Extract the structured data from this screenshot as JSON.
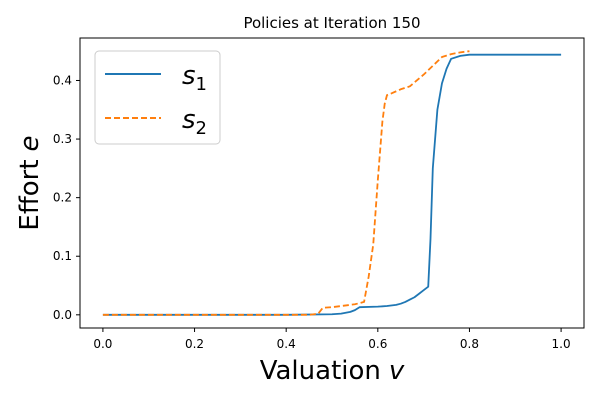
{
  "chart_data": {
    "type": "line",
    "title": "Policies at Iteration 150",
    "xlabel": "Valuation",
    "xlabel_var": "v",
    "ylabel": "Effort",
    "ylabel_var": "e",
    "xlim": [
      -0.05,
      1.05
    ],
    "ylim": [
      -0.0225,
      0.4725
    ],
    "xticks": [
      0.0,
      0.2,
      0.4,
      0.6,
      0.8,
      1.0
    ],
    "xtick_labels": [
      "0.0",
      "0.2",
      "0.4",
      "0.6",
      "0.8",
      "1.0"
    ],
    "yticks": [
      0.0,
      0.1,
      0.2,
      0.3,
      0.4
    ],
    "ytick_labels": [
      "0.0",
      "0.1",
      "0.2",
      "0.3",
      "0.4"
    ],
    "grid": false,
    "legend": "top-left",
    "series": [
      {
        "name": "s",
        "name_sub": "1",
        "color": "#1f77b4",
        "dash": "solid",
        "x": [
          0.0,
          0.4,
          0.5,
          0.52,
          0.54,
          0.55,
          0.56,
          0.6,
          0.62,
          0.64,
          0.65,
          0.66,
          0.67,
          0.68,
          0.69,
          0.7,
          0.71,
          0.715,
          0.72,
          0.73,
          0.74,
          0.75,
          0.76,
          0.78,
          0.8,
          0.85,
          1.0
        ],
        "values": [
          0.0,
          0.0,
          0.001,
          0.002,
          0.005,
          0.008,
          0.013,
          0.014,
          0.015,
          0.017,
          0.019,
          0.022,
          0.026,
          0.03,
          0.036,
          0.042,
          0.048,
          0.13,
          0.25,
          0.35,
          0.395,
          0.42,
          0.437,
          0.442,
          0.444,
          0.444,
          0.444
        ]
      },
      {
        "name": "s",
        "name_sub": "2",
        "color": "#ff7f0e",
        "dash": "dashed",
        "x": [
          0.0,
          0.45,
          0.47,
          0.48,
          0.5,
          0.52,
          0.55,
          0.57,
          0.58,
          0.59,
          0.6,
          0.61,
          0.615,
          0.62,
          0.63,
          0.65,
          0.67,
          0.7,
          0.72,
          0.74,
          0.76,
          0.78,
          0.8
        ],
        "values": [
          0.0,
          0.0,
          0.002,
          0.012,
          0.013,
          0.015,
          0.018,
          0.022,
          0.065,
          0.12,
          0.23,
          0.33,
          0.36,
          0.375,
          0.378,
          0.385,
          0.39,
          0.41,
          0.425,
          0.44,
          0.445,
          0.448,
          0.45
        ]
      }
    ]
  }
}
